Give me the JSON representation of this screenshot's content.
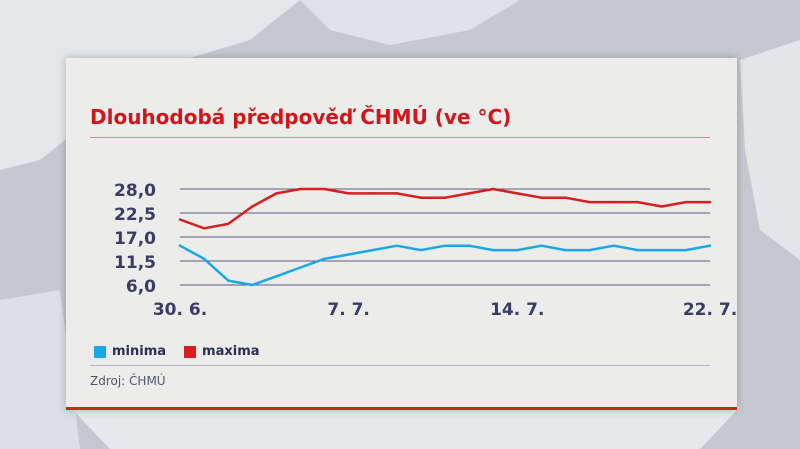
{
  "title": "Dlouhodobá předpověď ČHMÚ (ve °C)",
  "source": "Zdroj: ČHMÚ",
  "colors": {
    "accent": "#d81e1e",
    "minima": "#1aa7e8",
    "maxima": "#d81e1e",
    "grid": "#5b5b7a",
    "text": "#3b3b68"
  },
  "chart_data": {
    "type": "line",
    "title": "Dlouhodobá předpověď ČHMÚ (ve °C)",
    "x": [
      "30. 6.",
      "1. 7.",
      "2. 7.",
      "3. 7.",
      "4. 7.",
      "5. 7.",
      "6. 7.",
      "7. 7.",
      "8. 7.",
      "9. 7.",
      "10. 7.",
      "11. 7.",
      "12. 7.",
      "13. 7.",
      "14. 7.",
      "15. 7.",
      "16. 7.",
      "17. 7.",
      "18. 7.",
      "19. 7.",
      "20. 7.",
      "21. 7.",
      "22. 7."
    ],
    "xticks": [
      "30. 6.",
      "7. 7.",
      "14. 7.",
      "22. 7."
    ],
    "yticks": [
      "28,0",
      "22,5",
      "17,0",
      "11,5",
      "6,0"
    ],
    "ylim": [
      6,
      28
    ],
    "grid": true,
    "legend": "bottom-left",
    "series": [
      {
        "name": "minima",
        "color": "#1aa7e8",
        "values": [
          15,
          12,
          7,
          6,
          8,
          10,
          12,
          13,
          14,
          15,
          14,
          15,
          15,
          14,
          14,
          15,
          14,
          14,
          15,
          14,
          14,
          14,
          15
        ]
      },
      {
        "name": "maxima",
        "color": "#d81e1e",
        "values": [
          21,
          19,
          20,
          24,
          27,
          28,
          28,
          27,
          27,
          27,
          26,
          26,
          27,
          28,
          27,
          26,
          26,
          25,
          25,
          25,
          24,
          25,
          25
        ]
      }
    ]
  }
}
